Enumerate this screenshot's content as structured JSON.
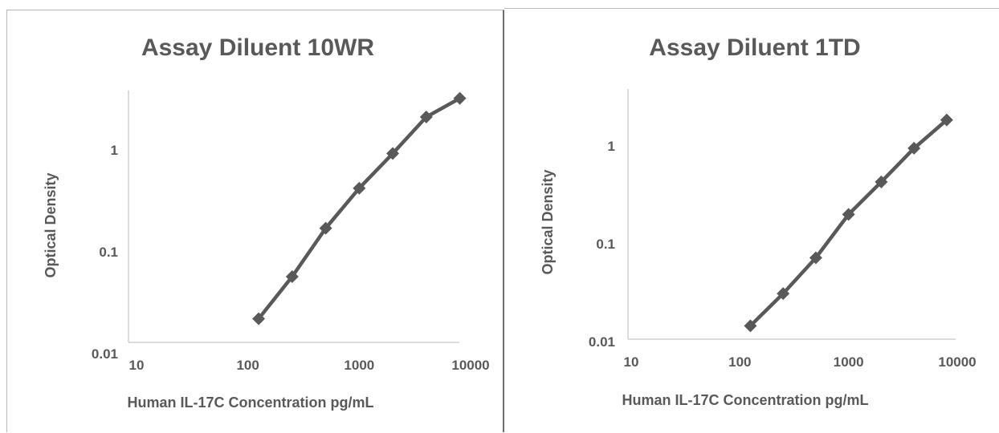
{
  "chart_data": [
    {
      "type": "line",
      "title": "Assay Diluent 10WR",
      "xlabel": "Human IL-17C Concentration pg/mL",
      "ylabel": "Optical Density",
      "x_scale": "log",
      "y_scale": "log",
      "xlim": [
        10,
        10000
      ],
      "ylim": [
        0.01,
        5
      ],
      "x_ticks": [
        10,
        100,
        1000,
        10000
      ],
      "x_tick_labels": [
        "10",
        "100",
        "1000",
        "10000"
      ],
      "y_ticks": [
        0.01,
        0.1,
        1
      ],
      "y_tick_labels": [
        "0.01",
        "0.1",
        "1"
      ],
      "grid": false,
      "legend": "none",
      "series": [
        {
          "color": "#595959",
          "marker": "diamond",
          "x": [
            125,
            250,
            500,
            1000,
            2000,
            4000,
            8000
          ],
          "y": [
            0.022,
            0.057,
            0.17,
            0.42,
            0.92,
            2.1,
            3.2
          ]
        }
      ]
    },
    {
      "type": "line",
      "title": "Assay Diluent 1TD",
      "xlabel": "Human IL-17C Concentration pg/mL",
      "ylabel": "Optical Density",
      "x_scale": "log",
      "y_scale": "log",
      "xlim": [
        10,
        10000
      ],
      "ylim": [
        0.01,
        5
      ],
      "x_ticks": [
        10,
        100,
        1000,
        10000
      ],
      "x_tick_labels": [
        "10",
        "100",
        "1000",
        "10000"
      ],
      "y_ticks": [
        0.01,
        0.1,
        1
      ],
      "y_tick_labels": [
        "0.01",
        "0.1",
        "1"
      ],
      "grid": false,
      "legend": "none",
      "series": [
        {
          "color": "#595959",
          "marker": "diamond",
          "x": [
            125,
            250,
            500,
            1000,
            2000,
            4000,
            8000
          ],
          "y": [
            0.0145,
            0.031,
            0.072,
            0.2,
            0.43,
            0.95,
            1.85
          ]
        }
      ]
    }
  ]
}
